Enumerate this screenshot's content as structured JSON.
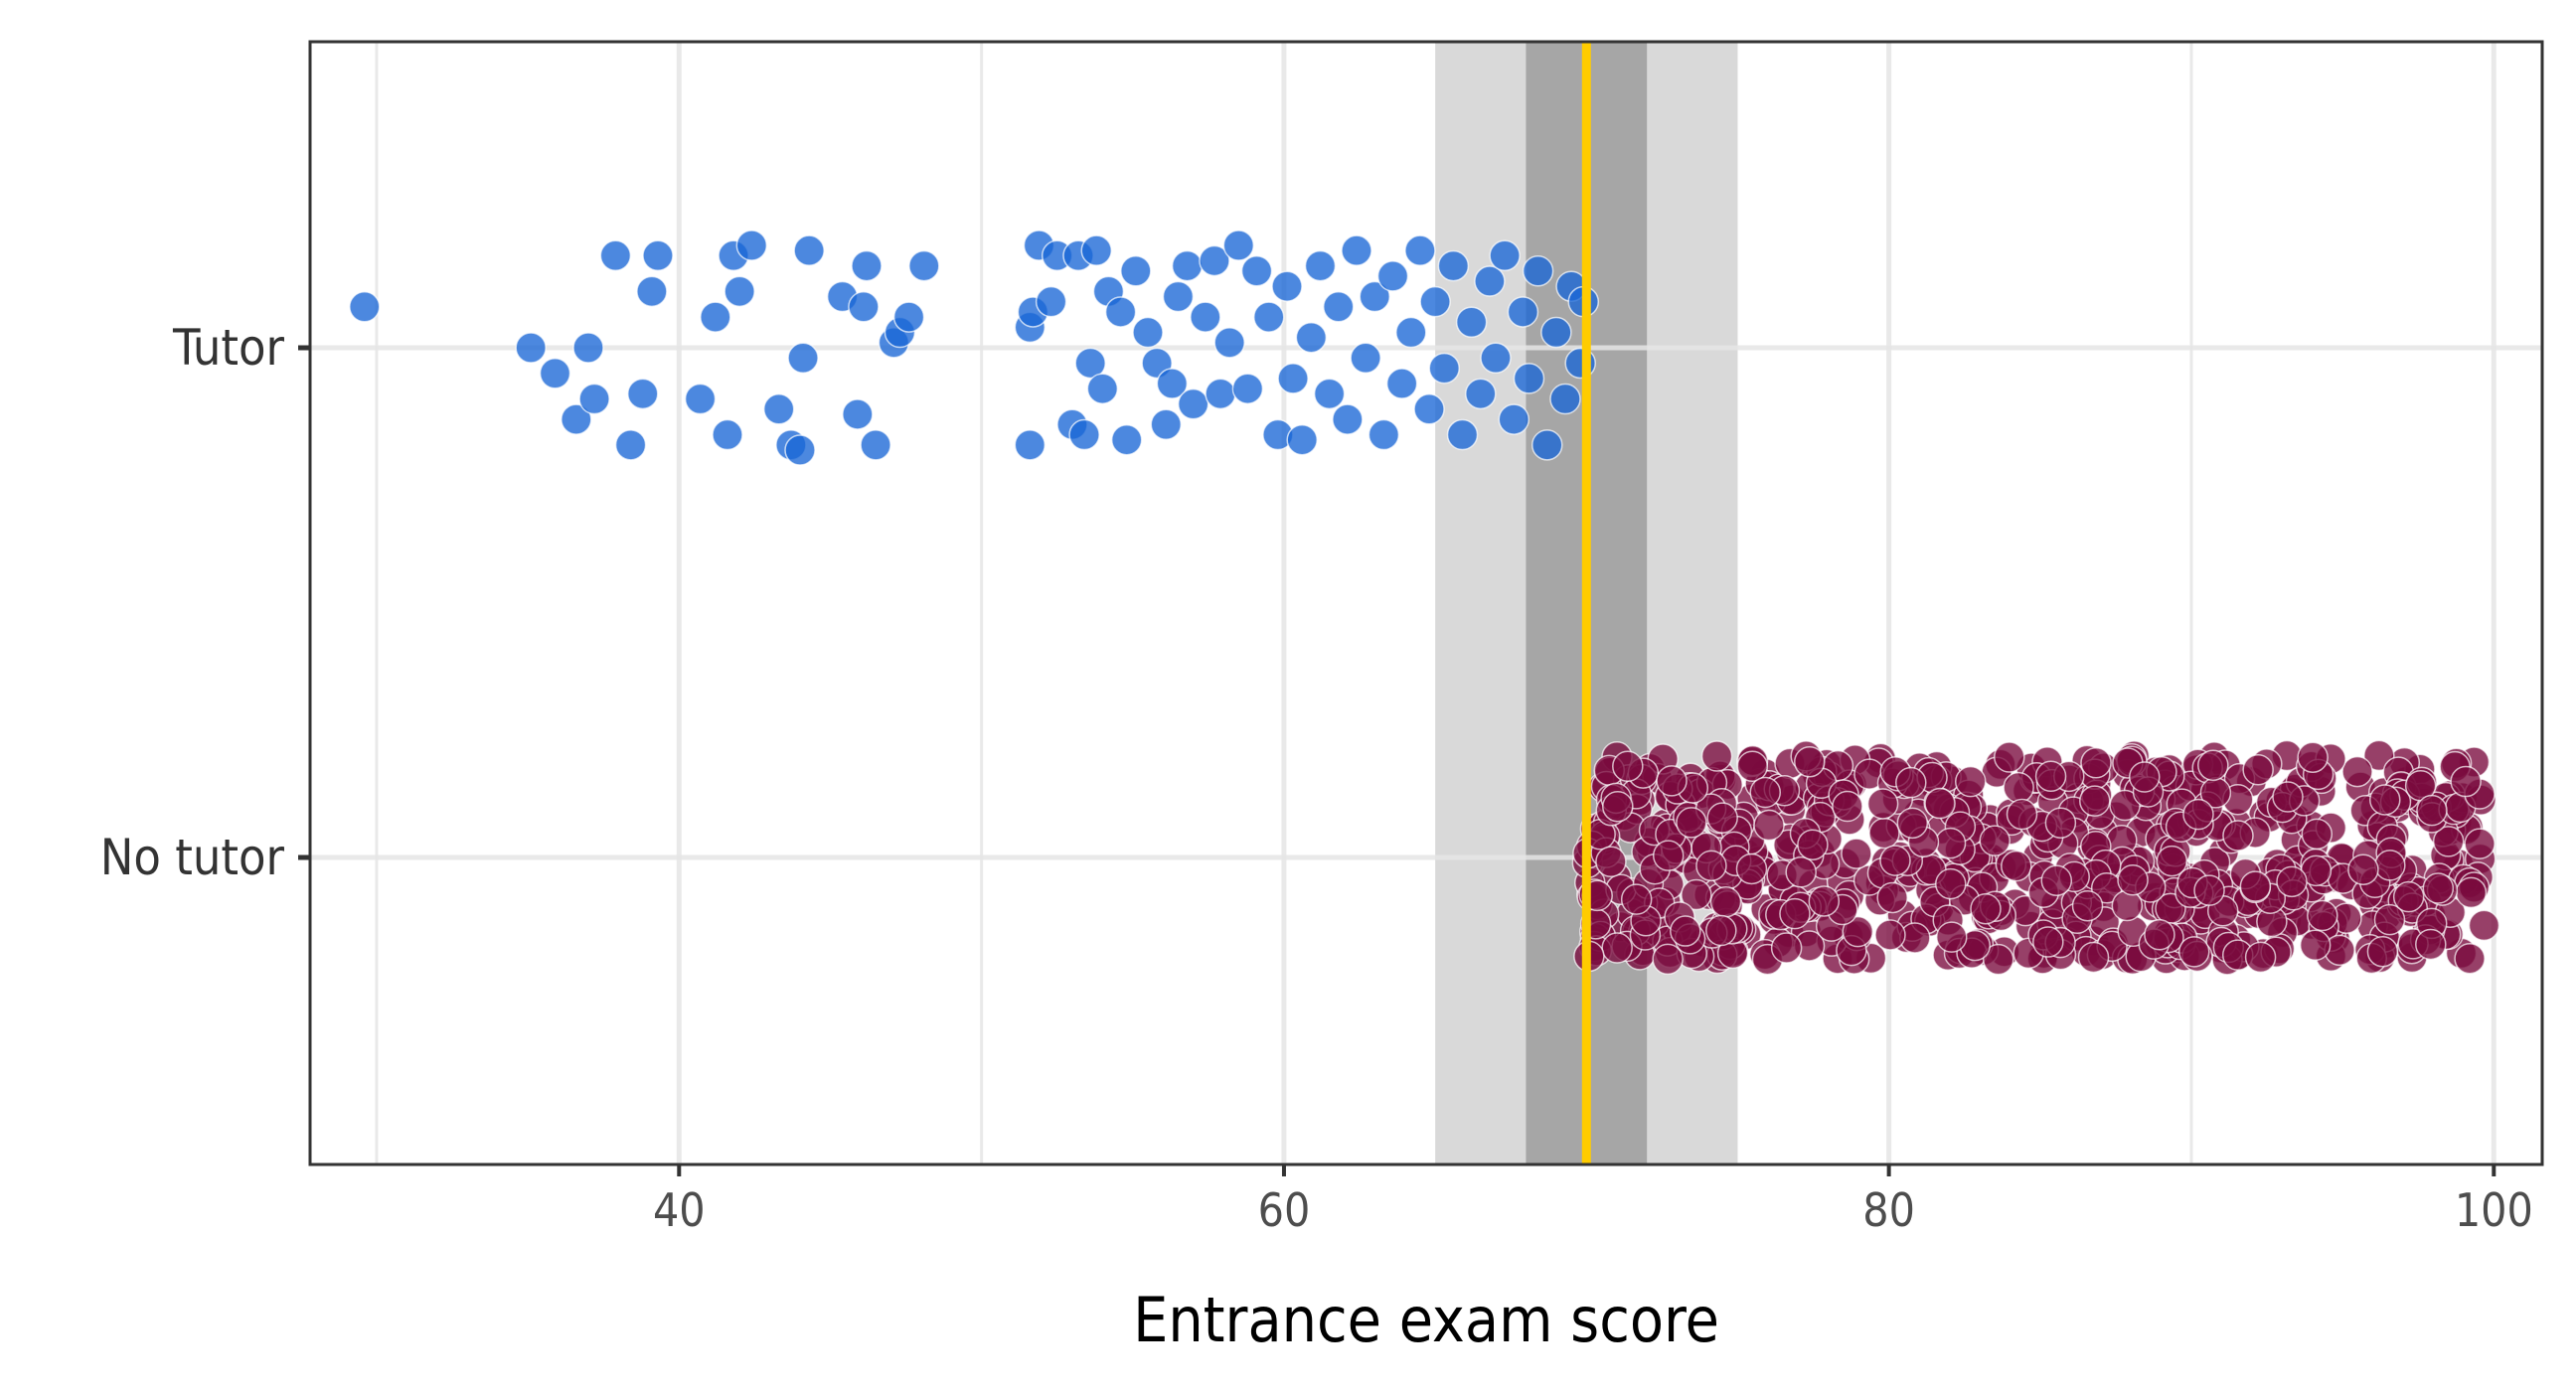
{
  "chart_data": {
    "type": "scatter",
    "xlabel": "Entrance exam score",
    "ylabel": "",
    "xlim": [
      27.8,
      101.6
    ],
    "x_ticks": [
      40,
      60,
      80,
      100
    ],
    "x_tick_labels": [
      "40",
      "60",
      "80",
      "100"
    ],
    "x_minor_gridlines": [
      30,
      50,
      70,
      90
    ],
    "categories": [
      "Tutor",
      "No tutor"
    ],
    "grid": true,
    "cutoff": 70,
    "bands": [
      {
        "from": 65,
        "to": 75,
        "color": "#d9d9d9"
      },
      {
        "from": 68,
        "to": 72,
        "color": "#a6a6a6"
      }
    ],
    "colors": {
      "Tutor": "#1a66d6",
      "No tutor": "#7a0a3e",
      "cutoff_line": "#ffcc00",
      "grid": "#e6e6e6"
    },
    "series": [
      {
        "category": "Tutor",
        "jitter_range": [
          -0.2,
          0.2
        ],
        "points": [
          [
            29.6,
            0.08
          ],
          [
            35.1,
            0.0
          ],
          [
            35.9,
            -0.05
          ],
          [
            36.6,
            -0.14
          ],
          [
            37.0,
            0.0
          ],
          [
            37.2,
            -0.1
          ],
          [
            37.9,
            0.18
          ],
          [
            38.4,
            -0.19
          ],
          [
            38.8,
            -0.09
          ],
          [
            39.1,
            0.11
          ],
          [
            39.3,
            0.18
          ],
          [
            40.7,
            -0.1
          ],
          [
            41.2,
            0.06
          ],
          [
            41.6,
            -0.17
          ],
          [
            41.8,
            0.18
          ],
          [
            42.0,
            0.11
          ],
          [
            42.4,
            0.2
          ],
          [
            43.3,
            -0.12
          ],
          [
            43.7,
            -0.19
          ],
          [
            44.0,
            -0.2
          ],
          [
            44.1,
            -0.02
          ],
          [
            44.3,
            0.19
          ],
          [
            45.4,
            0.1
          ],
          [
            45.9,
            -0.13
          ],
          [
            46.1,
            0.08
          ],
          [
            46.2,
            0.16
          ],
          [
            46.5,
            -0.19
          ],
          [
            47.1,
            0.01
          ],
          [
            47.3,
            0.03
          ],
          [
            47.6,
            0.06
          ],
          [
            48.1,
            0.16
          ],
          [
            51.6,
            0.04
          ],
          [
            51.6,
            -0.19
          ],
          [
            51.7,
            0.07
          ],
          [
            51.9,
            0.2
          ],
          [
            52.3,
            0.09
          ],
          [
            52.5,
            0.18
          ],
          [
            53.0,
            -0.15
          ],
          [
            53.2,
            0.18
          ],
          [
            53.4,
            -0.17
          ],
          [
            53.6,
            -0.03
          ],
          [
            53.8,
            0.19
          ],
          [
            54.0,
            -0.08
          ],
          [
            54.2,
            0.11
          ],
          [
            54.6,
            0.07
          ],
          [
            54.8,
            -0.18
          ],
          [
            55.1,
            0.15
          ],
          [
            55.5,
            0.03
          ],
          [
            55.8,
            -0.03
          ],
          [
            56.1,
            -0.15
          ],
          [
            56.3,
            -0.07
          ],
          [
            56.5,
            0.1
          ],
          [
            56.8,
            0.16
          ],
          [
            57.0,
            -0.11
          ],
          [
            57.4,
            0.06
          ],
          [
            57.7,
            0.17
          ],
          [
            57.9,
            -0.09
          ],
          [
            58.2,
            0.01
          ],
          [
            58.5,
            0.2
          ],
          [
            58.8,
            -0.08
          ],
          [
            59.1,
            0.15
          ],
          [
            59.5,
            0.06
          ],
          [
            59.8,
            -0.17
          ],
          [
            60.1,
            0.12
          ],
          [
            60.3,
            -0.06
          ],
          [
            60.6,
            -0.18
          ],
          [
            60.9,
            0.02
          ],
          [
            61.2,
            0.16
          ],
          [
            61.5,
            -0.09
          ],
          [
            61.8,
            0.08
          ],
          [
            62.1,
            -0.14
          ],
          [
            62.4,
            0.19
          ],
          [
            62.7,
            -0.02
          ],
          [
            63.0,
            0.1
          ],
          [
            63.3,
            -0.17
          ],
          [
            63.6,
            0.14
          ],
          [
            63.9,
            -0.07
          ],
          [
            64.2,
            0.03
          ],
          [
            64.5,
            0.19
          ],
          [
            64.8,
            -0.12
          ],
          [
            65.0,
            0.09
          ],
          [
            65.3,
            -0.04
          ],
          [
            65.6,
            0.16
          ],
          [
            65.9,
            -0.17
          ],
          [
            66.2,
            0.05
          ],
          [
            66.5,
            -0.09
          ],
          [
            66.8,
            0.13
          ],
          [
            67.0,
            -0.02
          ],
          [
            67.3,
            0.18
          ],
          [
            67.6,
            -0.14
          ],
          [
            67.9,
            0.07
          ],
          [
            68.1,
            -0.06
          ],
          [
            68.4,
            0.15
          ],
          [
            68.7,
            -0.19
          ],
          [
            69.0,
            0.03
          ],
          [
            69.3,
            -0.1
          ],
          [
            69.5,
            0.12
          ],
          [
            69.8,
            -0.03
          ],
          [
            69.9,
            0.09
          ]
        ]
      },
      {
        "category": "No tutor",
        "jitter_range": [
          -0.2,
          0.2
        ],
        "x_from": 70,
        "x_to": 99.7,
        "count": 800
      }
    ]
  }
}
